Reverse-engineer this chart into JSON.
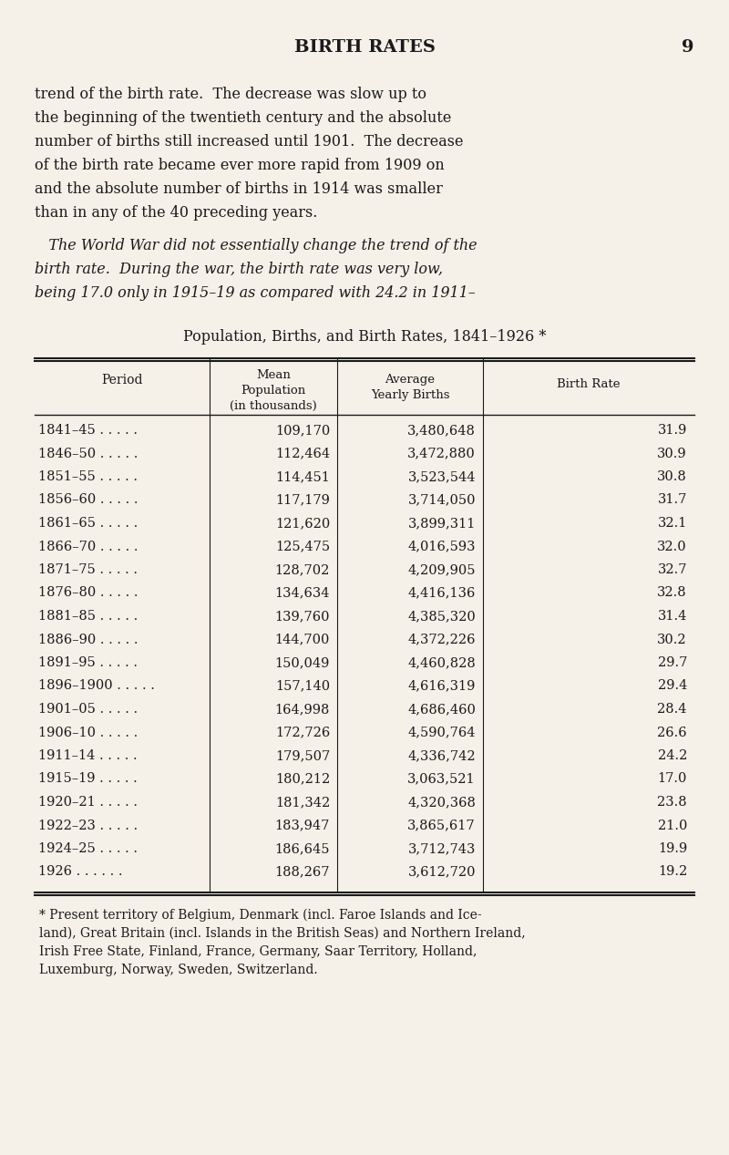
{
  "page_title": "BIRTH RATES",
  "page_number": "9",
  "bg_color": "#f5f0e8",
  "text_color": "#1a1a1a",
  "body_text_lines": [
    "trend of the birth rate.  The decrease was slow up to",
    "the beginning of the twentieth century and the absolute",
    "number of births still increased until 1901.  The decrease",
    "of the birth rate became ever more rapid from 1909 on",
    "and the absolute number of births in 1914 was smaller",
    "than in any of the 40 preceding years."
  ],
  "italic_text_lines": [
    "   The World War did not essentially change the trend of the",
    "birth rate.  During the war, the birth rate was very low,",
    "being 17.0 only in 1915–19 as compared with 24.2 in 1911–"
  ],
  "table_title": "Population, Births, and Birth Rates, 1841–1926 *",
  "col_headers": [
    "Period",
    "Mean\nPopulation\n(in thousands)",
    "Average\nYearly Births",
    "Birth Rate"
  ],
  "rows": [
    [
      "1841–45 . . . . .",
      "109,170",
      "3,480,648",
      "31.9"
    ],
    [
      "1846–50 . . . . .",
      "112,464",
      "3,472,880",
      "30.9"
    ],
    [
      "1851–55 . . . . .",
      "114,451",
      "3,523,544",
      "30.8"
    ],
    [
      "1856–60 . . . . .",
      "117,179",
      "3,714,050",
      "31.7"
    ],
    [
      "1861–65 . . . . .",
      "121,620",
      "3,899,311",
      "32.1"
    ],
    [
      "1866–70 . . . . .",
      "125,475",
      "4,016,593",
      "32.0"
    ],
    [
      "1871–75 . . . . .",
      "128,702",
      "4,209,905",
      "32.7"
    ],
    [
      "1876–80 . . . . .",
      "134,634",
      "4,416,136",
      "32.8"
    ],
    [
      "1881–85 . . . . .",
      "139,760",
      "4,385,320",
      "31.4"
    ],
    [
      "1886–90 . . . . .",
      "144,700",
      "4,372,226",
      "30.2"
    ],
    [
      "1891–95 . . . . .",
      "150,049",
      "4,460,828",
      "29.7"
    ],
    [
      "1896–1900 . . . . .",
      "157,140",
      "4,616,319",
      "29.4"
    ],
    [
      "1901–05 . . . . .",
      "164,998",
      "4,686,460",
      "28.4"
    ],
    [
      "1906–10 . . . . .",
      "172,726",
      "4,590,764",
      "26.6"
    ],
    [
      "1911–14 . . . . .",
      "179,507",
      "4,336,742",
      "24.2"
    ],
    [
      "1915–19 . . . . .",
      "180,212",
      "3,063,521",
      "17.0"
    ],
    [
      "1920–21 . . . . .",
      "181,342",
      "4,320,368",
      "23.8"
    ],
    [
      "1922–23 . . . . .",
      "183,947",
      "3,865,617",
      "21.0"
    ],
    [
      "1924–25 . . . . .",
      "186,645",
      "3,712,743",
      "19.9"
    ],
    [
      "1926 . . . . . .",
      "188,267",
      "3,612,720",
      "19.2"
    ]
  ],
  "footnote_lines": [
    "* Present territory of Belgium, Denmark (incl. Faroe Islands and Ice-",
    "land), Great Britain (incl. Islands in the British Seas) and Northern Ireland,",
    "Irish Free State, Finland, France, Germany, Saar Territory, Holland,",
    "Luxemburg, Norway, Sweden, Switzerland."
  ]
}
